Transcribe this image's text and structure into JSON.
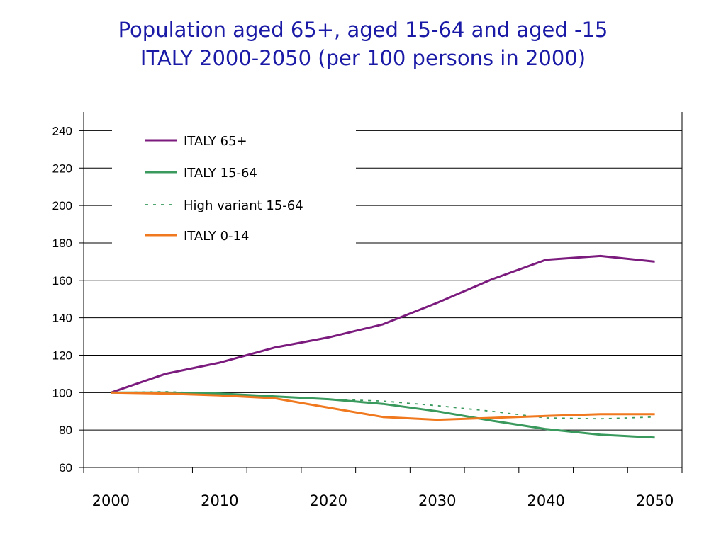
{
  "title_lines": [
    "Population aged 65+, aged 15-64 and aged -15",
    "ITALY 2000-2050 (per 100 persons in 2000)"
  ],
  "colors": {
    "title": "#1a1aa6",
    "grid": "#000000",
    "italy_65": "#7b1b7e",
    "italy_15_64": "#3a9a5e",
    "high_variant_15_64": "#3a9a5e",
    "italy_0_14": "#f0781e"
  },
  "chart_data": {
    "type": "line",
    "title": "Population aged 65+, aged 15-64 and aged -15 ITALY 2000-2050 (per 100 persons in 2000)",
    "x": [
      2000,
      2005,
      2010,
      2015,
      2020,
      2025,
      2030,
      2035,
      2040,
      2045,
      2050
    ],
    "xticks": [
      2000,
      2010,
      2020,
      2030,
      2040,
      2050
    ],
    "xlim": [
      1997.5,
      2052.5
    ],
    "ylim": [
      60,
      250
    ],
    "yticks": [
      60,
      80,
      100,
      120,
      140,
      160,
      180,
      200,
      220,
      240
    ],
    "grid": "horizontal",
    "legend_position": "top-left",
    "series": [
      {
        "name": "ITALY  65+",
        "color": "#7b1b7e",
        "style": "solid",
        "values": [
          100,
          110,
          116,
          124,
          129.5,
          136.5,
          148,
          160.5,
          171,
          173,
          170
        ]
      },
      {
        "name": "ITALY  15-64",
        "color": "#3a9a5e",
        "style": "solid",
        "values": [
          100,
          100,
          99.5,
          98,
          96.5,
          94,
          90,
          85,
          80.5,
          77.5,
          76
        ]
      },
      {
        "name": "High variant  15-64",
        "color": "#3a9a5e",
        "style": "dotted",
        "values": [
          100,
          100.5,
          99.5,
          98,
          96.5,
          95.5,
          93,
          90,
          86.5,
          86,
          87
        ]
      },
      {
        "name": "ITALY  0-14",
        "color": "#f0781e",
        "style": "solid",
        "values": [
          100,
          99.5,
          98.5,
          97,
          92,
          87,
          85.5,
          86.5,
          87.5,
          88.5,
          88.5
        ]
      }
    ]
  }
}
